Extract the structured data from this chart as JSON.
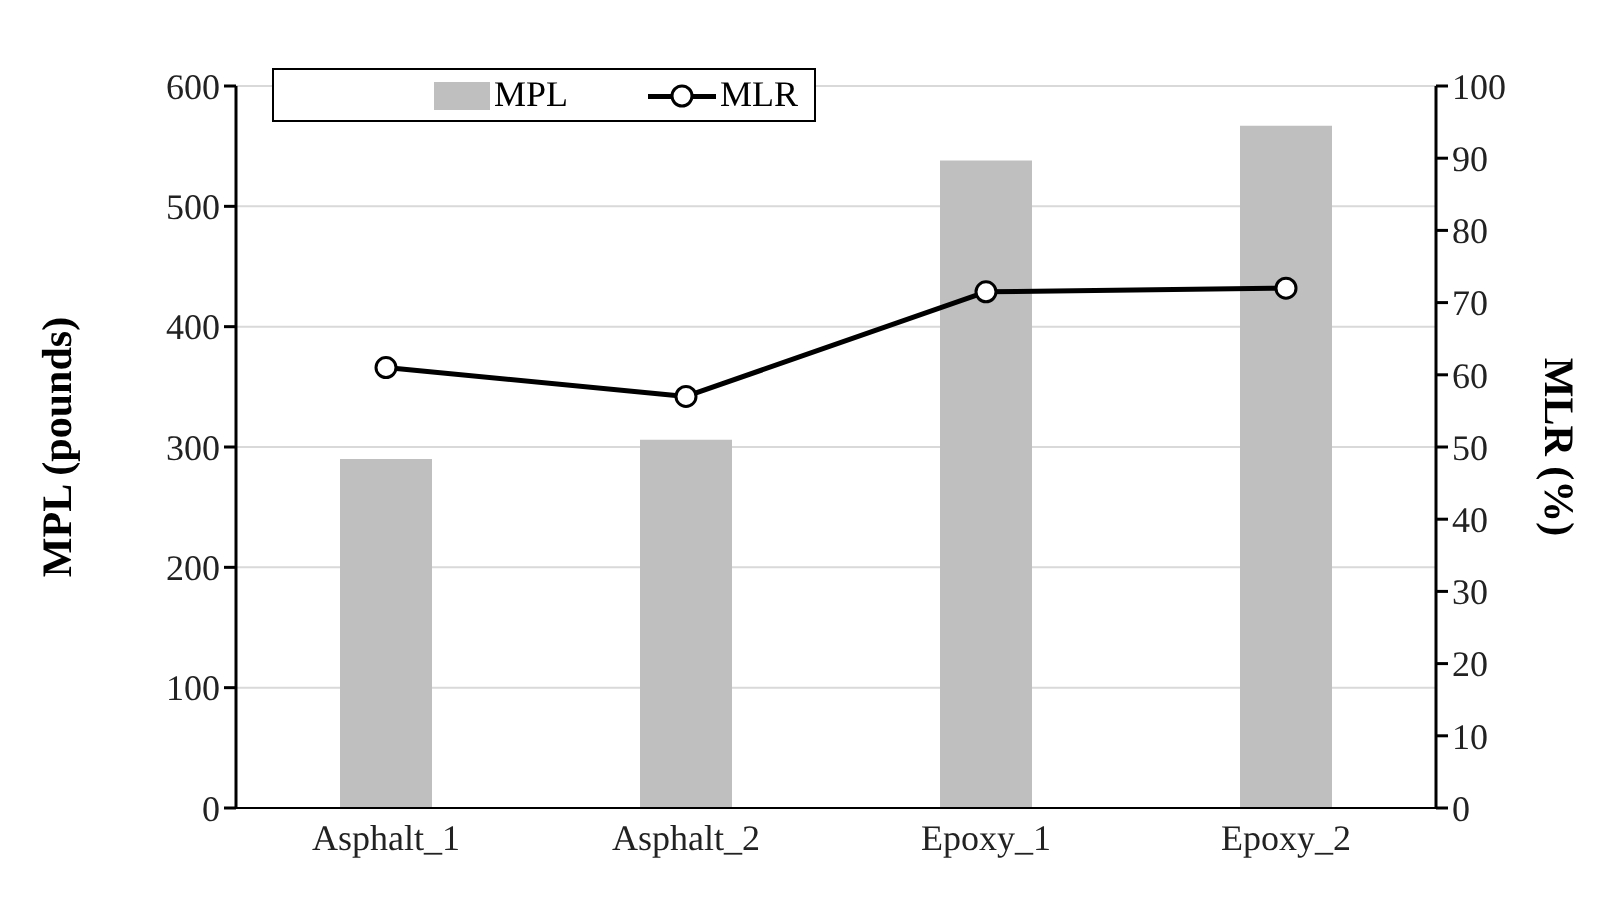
{
  "chart_data": {
    "type": "bar",
    "categories": [
      "Asphalt_1",
      "Asphalt_2",
      "Epoxy_1",
      "Epoxy_2"
    ],
    "series": [
      {
        "name": "MPL",
        "color": "#bfbfbf",
        "values": [
          290,
          306,
          538,
          567
        ]
      },
      {
        "name": "MLR",
        "type": "line",
        "axis": "y2",
        "color": "#000000",
        "values": [
          61,
          57,
          71.5,
          72
        ]
      }
    ],
    "ylabel": "MPL (pounds)",
    "y2label": "MLR (%)",
    "ylim": [
      0,
      600
    ],
    "yticks": [
      0,
      100,
      200,
      300,
      400,
      500,
      600
    ],
    "y2lim": [
      0,
      100
    ],
    "y2ticks": [
      0,
      10,
      20,
      30,
      40,
      50,
      60,
      70,
      80,
      90,
      100
    ],
    "grid": "y",
    "marker": "circle",
    "legend": "top left"
  }
}
